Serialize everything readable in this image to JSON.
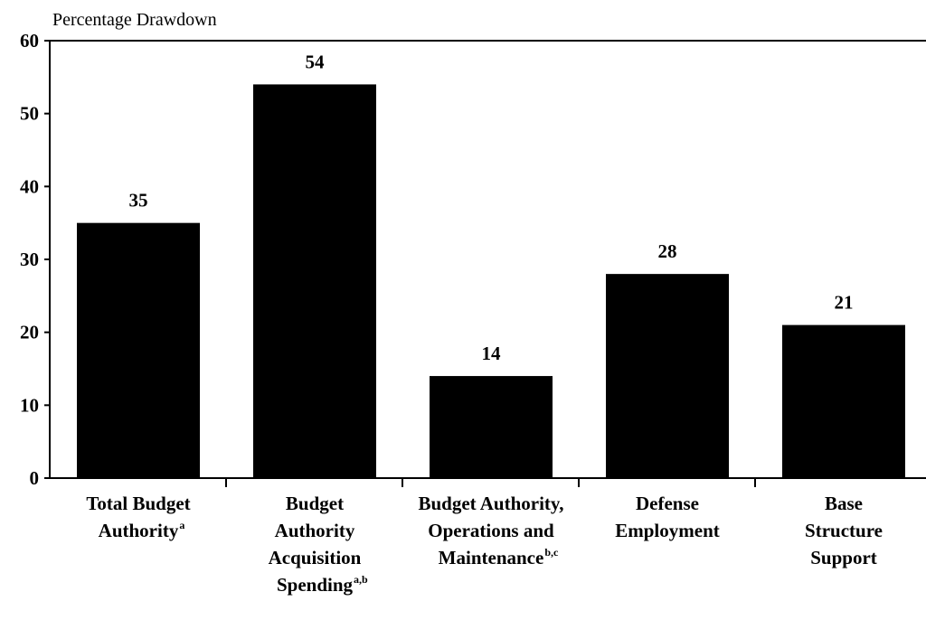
{
  "chart_data": {
    "type": "bar",
    "y_label": "Percentage Drawdown",
    "categories": [
      "Total Budget\nAuthority",
      "Budget\nAuthority\nAcquisition\nSpending",
      "Budget Authority,\nOperations and\nMaintenance",
      "Defense\nEmployment",
      "Base\nStructure\nSupport"
    ],
    "category_notes": [
      "a",
      "a,b",
      "b,c",
      null,
      null
    ],
    "values": [
      35,
      54,
      14,
      28,
      21
    ],
    "color": "#000000",
    "ylim": [
      0,
      60
    ],
    "yticks": [
      0,
      10,
      20,
      30,
      40,
      50,
      60
    ],
    "grid": false
  }
}
